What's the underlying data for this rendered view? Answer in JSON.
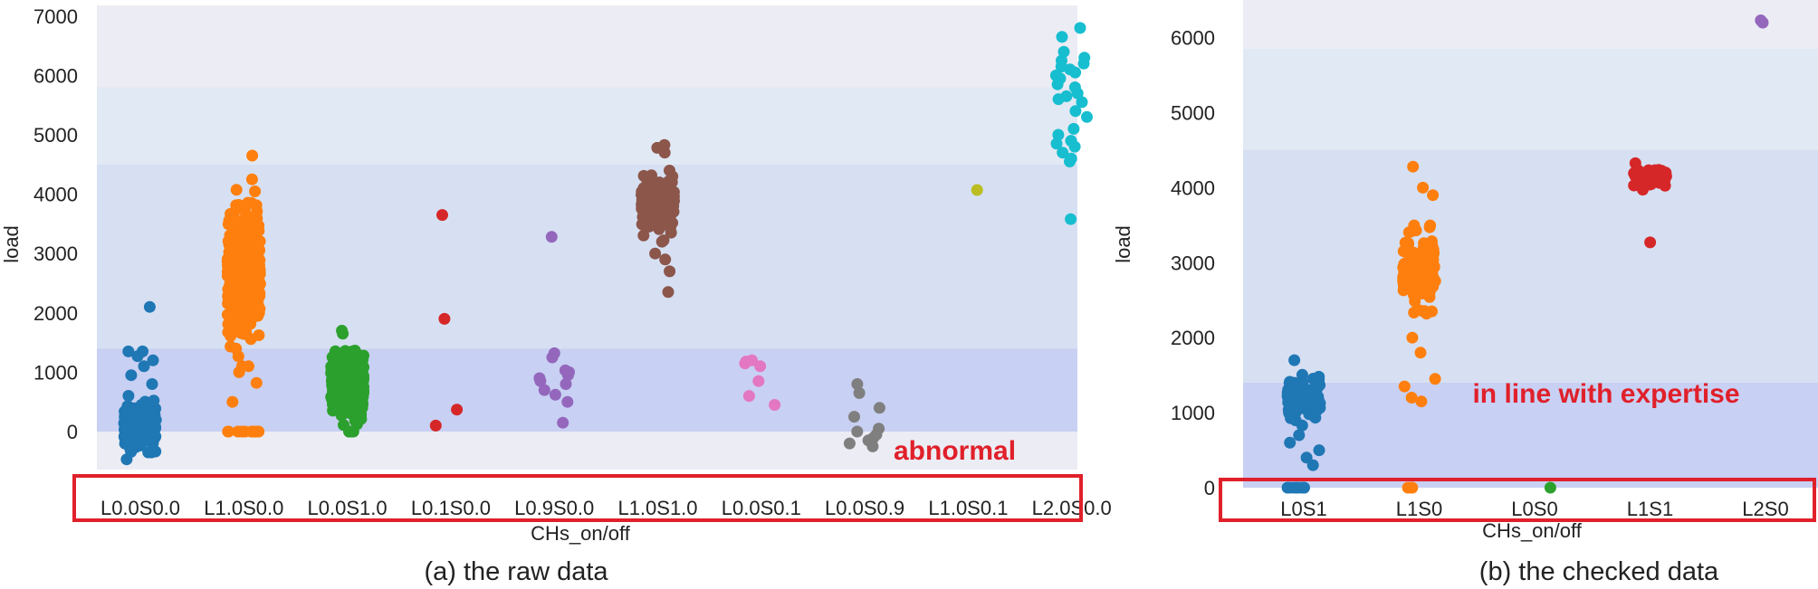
{
  "colors": {
    "plot_bg": "#ececf4",
    "band_light": "#e1e9f4",
    "band_mid": "#d6e0f2",
    "band_dark": "#c8d0f3",
    "highlight_box": "#e0202a",
    "annotation_text": "#e0202a"
  },
  "chart_data": [
    {
      "type": "scatter",
      "subtype": "strip",
      "caption": "(a) the raw data",
      "xlabel": "CHs_on/off",
      "ylabel": "load",
      "ylim": [
        -600,
        7000
      ],
      "yticks": [
        0,
        1000,
        2000,
        3000,
        4000,
        5000,
        6000,
        7000
      ],
      "grid": false,
      "bands": [
        {
          "from": 0,
          "to": 1400,
          "shade": "band_dark"
        },
        {
          "from": 1400,
          "to": 4500,
          "shade": "band_mid"
        },
        {
          "from": 4500,
          "to": 5800,
          "shade": "band_light"
        }
      ],
      "annotation": "abnormal",
      "categories": [
        "L0.0S0.0",
        "L1.0S0.0",
        "L0.0S1.0",
        "L0.1S0.0",
        "L0.9S0.0",
        "L1.0S1.0",
        "L0.0S0.1",
        "L0.0S0.9",
        "L1.0S0.1",
        "L2.0S0.0"
      ],
      "series": [
        {
          "category": "L0.0S0.0",
          "color": "#1f77b4",
          "n": 180,
          "center": 80,
          "spread": 380,
          "min": -550,
          "max": 1100,
          "extra": [
            2100,
            1350,
            1350,
            1270,
            1200,
            1100,
            950,
            800
          ]
        },
        {
          "category": "L1.0S0.0",
          "color": "#ff7f0e",
          "n": 550,
          "center": 2700,
          "spread": 900,
          "min": 1100,
          "max": 4250,
          "extra": [
            4650,
            1000,
            820,
            500,
            0,
            0,
            0,
            0,
            0,
            0,
            0,
            0,
            0,
            0,
            0,
            0
          ]
        },
        {
          "category": "L0.0S1.0",
          "color": "#2ca02c",
          "n": 500,
          "center": 800,
          "spread": 430,
          "min": 0,
          "max": 1680,
          "extra": [
            1700,
            1650,
            0,
            0,
            0
          ]
        },
        {
          "category": "L0.1S0.0",
          "color": "#d62728",
          "n": 0,
          "extra": [
            3650,
            1900,
            370,
            100
          ]
        },
        {
          "category": "L0.9S0.0",
          "color": "#9467bd",
          "n": 0,
          "extra": [
            3280,
            1320,
            1250,
            1030,
            1000,
            950,
            900,
            850,
            800,
            700,
            620,
            500,
            150
          ]
        },
        {
          "category": "L1.0S1.0",
          "color": "#8c564b",
          "n": 200,
          "center": 3850,
          "spread": 380,
          "min": 3200,
          "max": 4600,
          "extra": [
            4830,
            4780,
            4700,
            3000,
            2900,
            2700,
            2350
          ]
        },
        {
          "category": "L0.0S0.1",
          "color": "#e377c2",
          "n": 0,
          "extra": [
            1200,
            1180,
            1150,
            1100,
            850,
            600,
            450
          ]
        },
        {
          "category": "L0.0S0.9",
          "color": "#7f7f7f",
          "n": 0,
          "extra": [
            800,
            650,
            400,
            250,
            50,
            0,
            -50,
            -100,
            -150,
            -200,
            -250
          ]
        },
        {
          "category": "L1.0S0.1",
          "color": "#bcbd22",
          "n": 0,
          "extra": [
            4070
          ]
        },
        {
          "category": "L2.0S0.0",
          "color": "#17becf",
          "n": 0,
          "extra": [
            6800,
            6650,
            6400,
            6300,
            6250,
            6200,
            6150,
            6100,
            6050,
            6000,
            5950,
            5850,
            5800,
            5700,
            5650,
            5600,
            5550,
            5400,
            5300,
            5100,
            5000,
            4900,
            4850,
            4800,
            4700,
            4600,
            4550,
            3580
          ]
        }
      ]
    },
    {
      "type": "scatter",
      "subtype": "strip",
      "caption": "(b) the checked data",
      "xlabel": "CHs_on/off",
      "ylabel": "load",
      "ylim": [
        0,
        6500
      ],
      "yticks": [
        0,
        1000,
        2000,
        3000,
        4000,
        5000,
        6000
      ],
      "grid": false,
      "bands": [
        {
          "from": 0,
          "to": 1400,
          "shade": "band_dark"
        },
        {
          "from": 1400,
          "to": 4500,
          "shade": "band_mid"
        },
        {
          "from": 4500,
          "to": 5850,
          "shade": "band_light"
        }
      ],
      "annotation": "in line with expertise",
      "categories": [
        "L0S1",
        "L1S0",
        "L0S0",
        "L1S1",
        "L2S0"
      ],
      "series": [
        {
          "category": "L0S1",
          "color": "#1f77b4",
          "n": 130,
          "center": 1200,
          "spread": 230,
          "min": 800,
          "max": 1700,
          "extra": [
            1700,
            700,
            600,
            500,
            400,
            300,
            0,
            0,
            0,
            0,
            0,
            0,
            0,
            0
          ]
        },
        {
          "category": "L1S0",
          "color": "#ff7f0e",
          "n": 170,
          "center": 2900,
          "spread": 400,
          "min": 2100,
          "max": 3800,
          "extra": [
            4280,
            4000,
            3900,
            2000,
            1800,
            1450,
            1350,
            1200,
            1150,
            0,
            0,
            0
          ]
        },
        {
          "category": "L0S0",
          "color": "#2ca02c",
          "n": 0,
          "extra": [
            0
          ]
        },
        {
          "category": "L1S1",
          "color": "#d62728",
          "n": 70,
          "center": 4120,
          "spread": 110,
          "min": 3800,
          "max": 4450,
          "extra": [
            3270
          ]
        },
        {
          "category": "L2S0",
          "color": "#9467bd",
          "n": 0,
          "extra": [
            6230,
            6200
          ]
        }
      ]
    }
  ]
}
